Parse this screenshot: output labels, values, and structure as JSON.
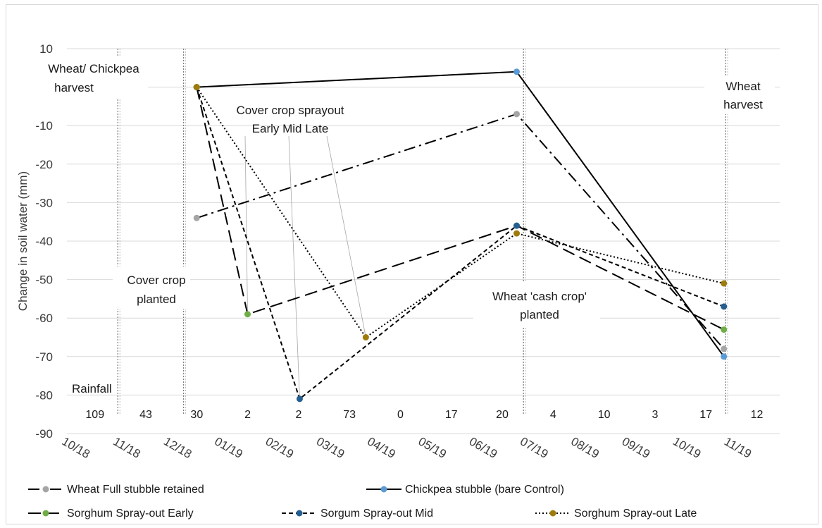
{
  "chart_data": {
    "type": "line",
    "title": "",
    "xlabel": "",
    "ylabel": "Change in soil water (mm)",
    "ylim": [
      -90,
      10
    ],
    "yticks": [
      "10",
      "0",
      "-10",
      "-20",
      "-30",
      "-40",
      "-50",
      "-60",
      "-70",
      "-80",
      "-90"
    ],
    "x_tick_labels": [
      "10/18",
      "11/18",
      "12/18",
      "01/19",
      "02/19",
      "03/19",
      "04/19",
      "05/19",
      "06/19",
      "07/19",
      "08/19",
      "09/19",
      "10/19",
      "11/19"
    ],
    "x_range_months": [
      "2018-10",
      "2019-11"
    ],
    "grid": "horizontal",
    "legend_position": "bottom",
    "series": [
      {
        "name": "Wheat Full stubble retained",
        "color": "#a5a5a5",
        "line_style": "dash-dot",
        "points": [
          [
            "2018-12-18",
            -34
          ],
          [
            "2019-06-26",
            -7
          ],
          [
            "2019-10-29",
            -68
          ]
        ]
      },
      {
        "name": "Chickpea stubble (bare Control)",
        "color": "#5b9bd5",
        "line_style": "solid",
        "points": [
          [
            "2018-12-18",
            0
          ],
          [
            "2019-06-26",
            4
          ],
          [
            "2019-10-29",
            -70
          ]
        ]
      },
      {
        "name": "Sorghum Spray-out Early",
        "color": "#70ad47",
        "line_style": "long-dash",
        "points": [
          [
            "2018-12-18",
            0
          ],
          [
            "2019-01-18",
            -59
          ],
          [
            "2019-06-26",
            -36
          ],
          [
            "2019-10-29",
            -63
          ]
        ]
      },
      {
        "name": "Sorgum Spray-out Mid",
        "color": "#255e91",
        "line_style": "short-dash",
        "points": [
          [
            "2018-12-18",
            0
          ],
          [
            "2019-02-17",
            -81
          ],
          [
            "2019-06-26",
            -36
          ],
          [
            "2019-10-29",
            -57
          ]
        ]
      },
      {
        "name": "Sorghum Spray-out Late",
        "color": "#9e7c0c",
        "line_style": "dotted",
        "points": [
          [
            "2018-12-18",
            0
          ],
          [
            "2019-03-28",
            -65
          ],
          [
            "2019-06-26",
            -38
          ],
          [
            "2019-10-29",
            -51
          ]
        ]
      }
    ],
    "event_lines": [
      "2018-11-01",
      "2018-12-10",
      "2019-06-30",
      "2019-10-30"
    ],
    "annotations": {
      "harvest": [
        "Wheat/ Chickpea",
        "harvest"
      ],
      "cover_planted": [
        "Cover crop",
        "planted"
      ],
      "sprayout": [
        "Cover crop sprayout",
        "Early  Mid  Late"
      ],
      "cash_crop": [
        "Wheat 'cash crop'",
        "planted"
      ],
      "wheat_harvest": [
        "Wheat",
        "harvest"
      ]
    },
    "rainfall": {
      "label": "Rainfall",
      "values": [
        "109",
        "43",
        "30",
        "2",
        "2",
        "73",
        "0",
        "17",
        "20",
        "4",
        "10",
        "3",
        "17",
        "12"
      ]
    }
  }
}
